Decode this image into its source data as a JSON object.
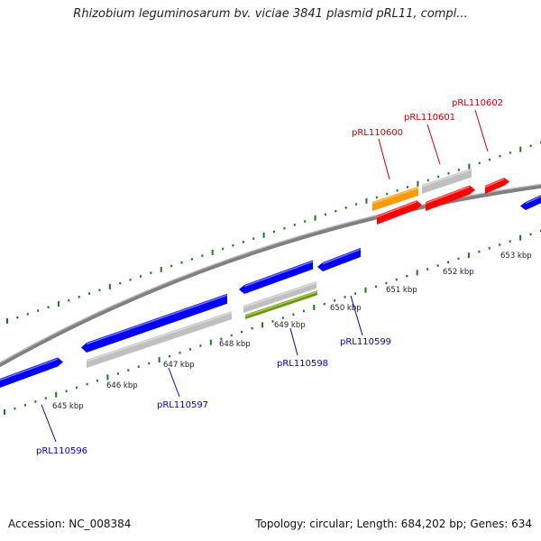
{
  "title": "Rhizobium leguminosarum bv. viciae 3841 plasmid pRL11, compl...",
  "footer": {
    "accession": "Accession: NC_008384",
    "info": "Topology: circular; Length: 684,202 bp; Genes: 634"
  },
  "colors": {
    "backbone": "#808080",
    "tick": "#1a7a1a",
    "forward_gene": "#0000ff",
    "reverse_gene": "#ff0000",
    "orange_gene": "#ff9900",
    "grey_feature": "#bfbfbf",
    "olive_feature": "#669900",
    "label_blue": "#0000cc",
    "label_red": "#cc0000"
  },
  "scale_labels": [
    {
      "kbp": 645,
      "text": "645 kbp"
    },
    {
      "kbp": 646,
      "text": "646 kbp"
    },
    {
      "kbp": 647,
      "text": "647 kbp"
    },
    {
      "kbp": 648,
      "text": "648 kbp"
    },
    {
      "kbp": 649,
      "text": "649 kbp"
    },
    {
      "kbp": 650,
      "text": "650 kbp"
    },
    {
      "kbp": 651,
      "text": "651 kbp"
    },
    {
      "kbp": 652,
      "text": "652 kbp"
    },
    {
      "kbp": 653,
      "text": "653 kbp"
    }
  ],
  "gene_labels": [
    {
      "text": "pRL110596",
      "strand": "bottom"
    },
    {
      "text": "pRL110597",
      "strand": "bottom"
    },
    {
      "text": "pRL110598",
      "strand": "bottom"
    },
    {
      "text": "pRL110599",
      "strand": "bottom"
    },
    {
      "text": "pRL110600",
      "strand": "top"
    },
    {
      "text": "pRL110601",
      "strand": "top"
    },
    {
      "text": "pRL110602",
      "strand": "top"
    }
  ]
}
